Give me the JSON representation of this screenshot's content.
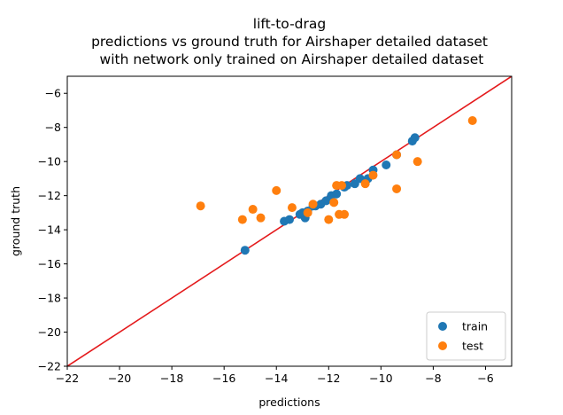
{
  "chart_data": {
    "type": "scatter",
    "title": "lift-to-drag\npredictions vs ground truth for Airshaper detailed dataset\n with network only trained on Airshaper detailed dataset",
    "xlabel": "predictions",
    "ylabel": "ground truth",
    "xlim": [
      -22,
      -5
    ],
    "ylim": [
      -22,
      -5
    ],
    "xticks": [
      -22,
      -20,
      -18,
      -16,
      -14,
      -12,
      -10,
      -8,
      -6
    ],
    "yticks": [
      -22,
      -20,
      -18,
      -16,
      -14,
      -12,
      -10,
      -8,
      -6
    ],
    "grid": false,
    "legend": "lower-right",
    "identity_line": {
      "from": [
        -22,
        -22
      ],
      "to": [
        -5,
        -5
      ],
      "color": "#e41a1c"
    },
    "series": [
      {
        "name": "train",
        "color": "#1f77b4",
        "points": [
          [
            -15.2,
            -15.2
          ],
          [
            -13.7,
            -13.5
          ],
          [
            -13.5,
            -13.4
          ],
          [
            -13.1,
            -13.1
          ],
          [
            -12.9,
            -13.3
          ],
          [
            -12.8,
            -12.9
          ],
          [
            -12.6,
            -12.6
          ],
          [
            -12.5,
            -12.6
          ],
          [
            -12.3,
            -12.5
          ],
          [
            -12.1,
            -12.3
          ],
          [
            -11.9,
            -12.0
          ],
          [
            -11.7,
            -11.9
          ],
          [
            -11.4,
            -11.5
          ],
          [
            -11.0,
            -11.3
          ],
          [
            -10.8,
            -11.0
          ],
          [
            -10.5,
            -11.0
          ],
          [
            -10.3,
            -10.5
          ],
          [
            -9.8,
            -10.2
          ],
          [
            -9.4,
            -9.6
          ],
          [
            -8.8,
            -8.8
          ],
          [
            -8.7,
            -8.6
          ],
          [
            -13.0,
            -13.0
          ],
          [
            -11.3,
            -11.4
          ]
        ]
      },
      {
        "name": "test",
        "color": "#ff7f0e",
        "points": [
          [
            -16.9,
            -12.6
          ],
          [
            -15.3,
            -13.4
          ],
          [
            -14.9,
            -12.8
          ],
          [
            -14.6,
            -13.3
          ],
          [
            -14.0,
            -11.7
          ],
          [
            -13.4,
            -12.7
          ],
          [
            -12.8,
            -13.0
          ],
          [
            -12.6,
            -12.5
          ],
          [
            -12.0,
            -13.4
          ],
          [
            -11.8,
            -12.4
          ],
          [
            -11.6,
            -13.1
          ],
          [
            -11.4,
            -13.1
          ],
          [
            -11.5,
            -11.4
          ],
          [
            -11.7,
            -11.4
          ],
          [
            -10.6,
            -11.3
          ],
          [
            -10.3,
            -10.8
          ],
          [
            -9.4,
            -11.6
          ],
          [
            -9.4,
            -9.6
          ],
          [
            -8.6,
            -10.0
          ],
          [
            -6.5,
            -7.6
          ]
        ]
      }
    ]
  }
}
